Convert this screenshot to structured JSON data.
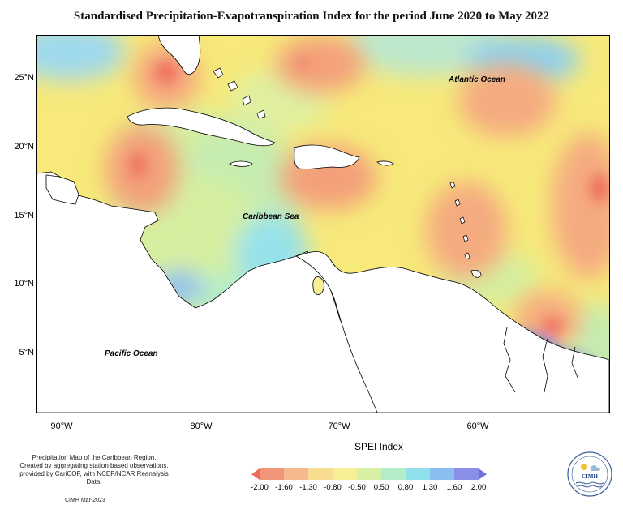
{
  "title": "Standardised Precipitation-Evapotranspiration Index for the period June 2020 to May 2022",
  "latitude_labels": [
    "25°N",
    "20°N",
    "15°N",
    "10°N",
    "5°N"
  ],
  "longitude_labels": [
    "90°W",
    "80°W",
    "70°W",
    "60°W"
  ],
  "region_labels": {
    "atlantic": "Atlantic Ocean",
    "caribbean": "Caribbean Sea",
    "pacific": "Pacific Ocean"
  },
  "footnote": {
    "line1": "Precipitation Map of the Caribbean Region.",
    "line2": "Created by aggregating station based observations,",
    "line3": "provided by CariCOF, with NCEP/NCAR Reanalysis Data."
  },
  "credit": "CIMH Mar-2023",
  "legend": {
    "title": "SPEI Index",
    "ticks": [
      "-2.00",
      "-1.60",
      "-1.30",
      "-0.80",
      "-0.50",
      "0.50",
      "0.80",
      "1.30",
      "1.60",
      "2.00"
    ],
    "colors": [
      "#f06a5a",
      "#f2967a",
      "#f5b98e",
      "#f8dc90",
      "#f7ef96",
      "#d8f0a4",
      "#b2ecc8",
      "#8fe0ea",
      "#8cbdf2",
      "#8a8fe8",
      "#7070dc"
    ]
  },
  "logo": {
    "name": "CIMH",
    "icon": "cimh-logo-icon"
  },
  "map_colors": {
    "background": "#f7e97a",
    "land": "#ffffff",
    "coast": "#000000"
  }
}
